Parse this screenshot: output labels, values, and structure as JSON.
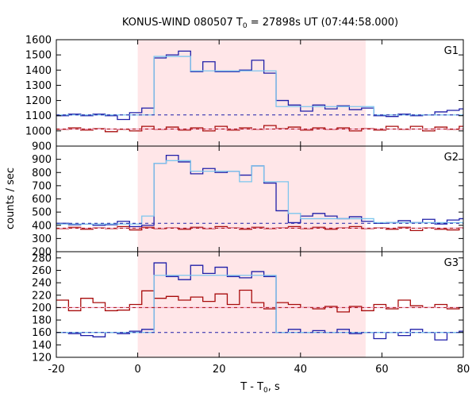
{
  "title_prefix": "KONUS-WIND 080507 T",
  "title_sub": "0",
  "title_suffix": " = 27898s UT (07:44:58.000)",
  "xlabel_prefix": "T - T",
  "xlabel_sub": "0",
  "xlabel_suffix": ", s",
  "ylabel": "counts / sec",
  "colors": {
    "shade": "#ffe6e8",
    "hard_series": "#1f1fa8",
    "hard_fit": "#7cc6ee",
    "soft_series": "#a80c0c",
    "soft_fit": "#f2a6c8"
  },
  "chart_data": {
    "type": "line",
    "grid": false,
    "x_range": [
      -20,
      80
    ],
    "x_ticks": [
      -20,
      0,
      20,
      40,
      60,
      80
    ],
    "shaded_interval": [
      0,
      56
    ],
    "panels": [
      {
        "label": "G1",
        "ylim": [
          900,
          1600
        ],
        "y_ticks": [
          900,
          1000,
          1100,
          1200,
          1300,
          1400,
          1500,
          1600
        ],
        "series": [
          {
            "role": "hard",
            "x": [
              -20,
              -17,
              -14,
              -11,
              -8,
              -5,
              -2,
              1,
              4,
              7,
              10,
              13,
              16,
              19,
              22,
              25,
              28,
              31,
              34,
              37,
              40,
              43,
              46,
              49,
              52,
              55,
              58,
              61,
              64,
              67,
              70,
              73,
              76,
              79
            ],
            "y": [
              1100,
              1110,
              1100,
              1110,
              1100,
              1075,
              1120,
              1150,
              1480,
              1500,
              1525,
              1390,
              1455,
              1390,
              1390,
              1400,
              1465,
              1380,
              1200,
              1170,
              1130,
              1170,
              1145,
              1165,
              1140,
              1150,
              1100,
              1095,
              1110,
              1100,
              1105,
              1125,
              1135,
              1145
            ]
          },
          {
            "role": "hard_fit",
            "x": [
              -20,
              4,
              7,
              13,
              19,
              25,
              34,
              37,
              55,
              58,
              80
            ],
            "y": [
              1105,
              1490,
              1490,
              1395,
              1395,
              1395,
              1160,
              1160,
              1160,
              1105,
              1105
            ]
          },
          {
            "role": "soft",
            "x": [
              -20,
              -17,
              -14,
              -11,
              -8,
              -5,
              -2,
              1,
              4,
              7,
              10,
              13,
              16,
              19,
              22,
              25,
              28,
              31,
              34,
              37,
              40,
              43,
              46,
              49,
              52,
              55,
              58,
              61,
              64,
              67,
              70,
              73,
              76,
              79
            ],
            "y": [
              1010,
              1020,
              1005,
              1015,
              995,
              1010,
              1000,
              1030,
              1010,
              1025,
              1005,
              1020,
              1000,
              1030,
              1005,
              1020,
              1010,
              1035,
              1015,
              1025,
              1005,
              1020,
              1010,
              1020,
              1000,
              1015,
              1005,
              1030,
              1010,
              1030,
              1000,
              1025,
              1010,
              1030
            ]
          },
          {
            "role": "soft_fit",
            "x": [
              -20,
              80
            ],
            "y": [
              1012,
              1012
            ]
          }
        ],
        "background_levels": [
          {
            "role": "hard",
            "y": 1105
          },
          {
            "role": "soft",
            "y": 1012
          }
        ]
      },
      {
        "label": "G2",
        "ylim": [
          200,
          1000
        ],
        "y_ticks": [
          200,
          300,
          400,
          500,
          600,
          700,
          800,
          900
        ],
        "series": [
          {
            "role": "hard",
            "x": [
              -20,
              -17,
              -14,
              -11,
              -8,
              -5,
              -2,
              1,
              4,
              7,
              10,
              13,
              16,
              19,
              22,
              25,
              28,
              31,
              34,
              37,
              40,
              43,
              46,
              49,
              52,
              55,
              58,
              61,
              64,
              67,
              70,
              73,
              76,
              79
            ],
            "y": [
              415,
              405,
              410,
              400,
              405,
              430,
              390,
              400,
              870,
              930,
              880,
              790,
              830,
              800,
              810,
              780,
              850,
              720,
              510,
              420,
              470,
              490,
              470,
              450,
              465,
              430,
              415,
              420,
              435,
              420,
              445,
              410,
              440,
              450
            ]
          },
          {
            "role": "hard_fit",
            "x": [
              -20,
              1,
              4,
              7,
              13,
              19,
              25,
              28,
              31,
              34,
              37,
              40,
              55,
              58,
              80
            ],
            "y": [
              410,
              470,
              870,
              890,
              810,
              810,
              730,
              850,
              730,
              730,
              490,
              450,
              450,
              420,
              420
            ]
          },
          {
            "role": "soft",
            "x": [
              -20,
              -17,
              -14,
              -11,
              -8,
              -5,
              -2,
              1,
              4,
              7,
              10,
              13,
              16,
              19,
              22,
              25,
              28,
              31,
              34,
              37,
              40,
              43,
              46,
              49,
              52,
              55,
              58,
              61,
              64,
              67,
              70,
              73,
              76,
              79
            ],
            "y": [
              375,
              385,
              370,
              380,
              375,
              390,
              365,
              385,
              375,
              380,
              370,
              385,
              375,
              390,
              380,
              370,
              385,
              375,
              380,
              390,
              375,
              385,
              370,
              380,
              390,
              375,
              380,
              370,
              385,
              360,
              380,
              370,
              365,
              380
            ]
          },
          {
            "role": "soft_fit",
            "x": [
              -20,
              80
            ],
            "y": [
              378,
              378
            ]
          }
        ],
        "background_levels": [
          {
            "role": "hard",
            "y": 415
          },
          {
            "role": "soft",
            "y": 378
          }
        ]
      },
      {
        "label": "G3",
        "ylim": [
          120,
          290
        ],
        "y_ticks": [
          120,
          140,
          160,
          180,
          200,
          220,
          240,
          260,
          280
        ],
        "series": [
          {
            "role": "hard",
            "x": [
              -20,
              -17,
              -14,
              -11,
              -8,
              -5,
              -2,
              1,
              4,
              7,
              10,
              13,
              16,
              19,
              22,
              25,
              28,
              31,
              34,
              37,
              40,
              43,
              46,
              49,
              52,
              55,
              58,
              61,
              64,
              67,
              70,
              73,
              76,
              79
            ],
            "y": [
              160,
              158,
              155,
              153,
              160,
              158,
              162,
              165,
              272,
              250,
              245,
              268,
              255,
              265,
              250,
              248,
              258,
              250,
              160,
              165,
              160,
              163,
              160,
              165,
              158,
              160,
              150,
              160,
              155,
              165,
              160,
              148,
              160,
              162
            ]
          },
          {
            "role": "hard_fit",
            "x": [
              -20,
              1,
              4,
              7,
              31,
              34,
              55,
              58,
              80
            ],
            "y": [
              160,
              160,
              252,
              252,
              252,
              160,
              160,
              160,
              160
            ]
          },
          {
            "role": "soft",
            "x": [
              -20,
              -17,
              -14,
              -11,
              -8,
              -5,
              -2,
              1,
              4,
              7,
              10,
              13,
              16,
              19,
              22,
              25,
              28,
              31,
              34,
              37,
              40,
              43,
              46,
              49,
              52,
              55,
              58,
              61,
              64,
              67,
              70,
              73,
              76,
              79
            ],
            "y": [
              212,
              195,
              215,
              208,
              195,
              196,
              205,
              227,
              215,
              218,
              212,
              217,
              210,
              222,
              205,
              228,
              208,
              198,
              208,
              205,
              200,
              198,
              202,
              193,
              202,
              195,
              205,
              198,
              212,
              203,
              200,
              205,
              198,
              200
            ]
          },
          {
            "role": "soft_fit",
            "x": [
              -20,
              80
            ],
            "y": [
              200,
              200
            ]
          }
        ],
        "background_levels": [
          {
            "role": "hard",
            "y": 160
          },
          {
            "role": "soft",
            "y": 200
          }
        ]
      }
    ]
  }
}
